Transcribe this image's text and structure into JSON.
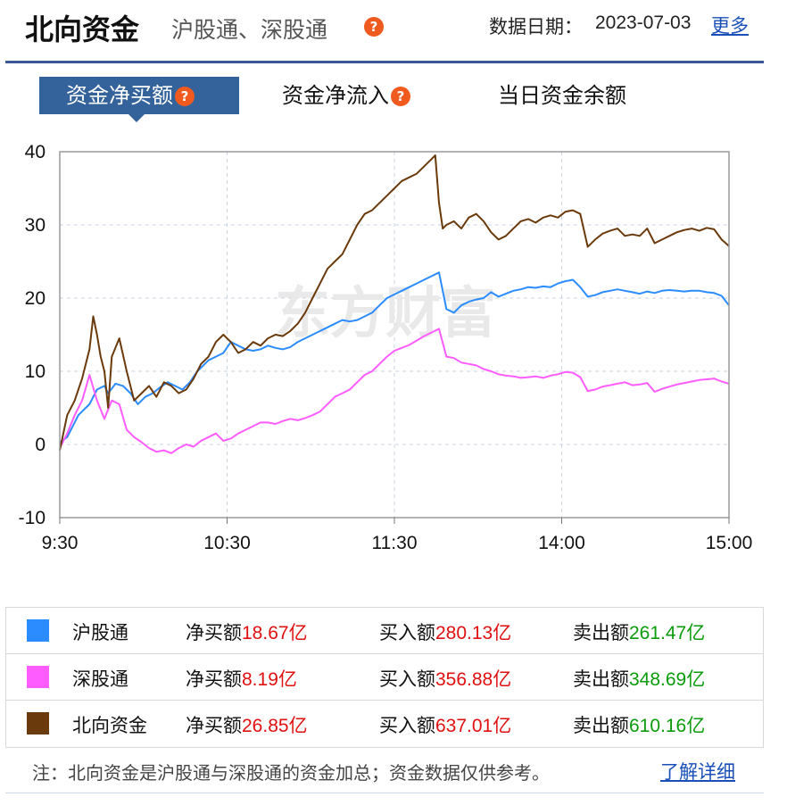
{
  "header": {
    "title": "北向资金",
    "subtitle": "沪股通、深股通",
    "date_label": "数据日期：",
    "date_value": "2023-07-03",
    "more_link": "更多"
  },
  "tabs": [
    {
      "label": "资金净买额",
      "active": true,
      "has_help": true
    },
    {
      "label": "资金净流入",
      "active": false,
      "has_help": true
    },
    {
      "label": "当日资金余额",
      "active": false,
      "has_help": false
    }
  ],
  "help_glyph": "?",
  "chart_data": {
    "type": "line",
    "x_ticks": [
      "9:30",
      "10:30",
      "11:30",
      "14:00",
      "15:00"
    ],
    "ylim": [
      -10,
      40
    ],
    "y_ticks": [
      -10,
      0,
      10,
      20,
      30,
      40
    ],
    "grid": true,
    "legend_position": "below",
    "series": [
      {
        "name": "沪股通",
        "color": "#2b8cff",
        "values": [
          [
            0,
            0.3
          ],
          [
            2,
            1
          ],
          [
            5,
            4
          ],
          [
            8,
            5.5
          ],
          [
            10,
            7.5
          ],
          [
            12,
            8
          ],
          [
            13,
            7
          ],
          [
            15,
            8.3
          ],
          [
            17,
            8
          ],
          [
            19,
            7
          ],
          [
            21,
            5.5
          ],
          [
            23,
            6.5
          ],
          [
            25,
            7
          ],
          [
            27,
            7.8
          ],
          [
            29,
            8.5
          ],
          [
            31,
            8
          ],
          [
            33,
            7.5
          ],
          [
            35,
            8.5
          ],
          [
            37,
            10
          ],
          [
            40,
            11.5
          ],
          [
            42,
            12
          ],
          [
            44,
            12.5
          ],
          [
            46,
            14
          ],
          [
            48,
            13.5
          ],
          [
            50,
            13
          ],
          [
            52,
            12.8
          ],
          [
            54,
            13
          ],
          [
            56,
            13.5
          ],
          [
            58,
            13.2
          ],
          [
            60,
            13
          ],
          [
            62,
            13.3
          ],
          [
            64,
            14
          ],
          [
            66,
            14.5
          ],
          [
            68,
            15
          ],
          [
            70,
            15.5
          ],
          [
            72,
            16
          ],
          [
            74,
            16.5
          ],
          [
            76,
            17
          ],
          [
            78,
            16.8
          ],
          [
            80,
            17
          ],
          [
            82,
            17.5
          ],
          [
            84,
            18
          ],
          [
            86,
            19
          ],
          [
            88,
            20
          ],
          [
            90,
            20.5
          ],
          [
            92,
            21
          ],
          [
            94,
            21.5
          ],
          [
            96,
            22
          ],
          [
            98,
            22.5
          ],
          [
            100,
            23
          ],
          [
            102,
            23.5
          ],
          [
            104,
            18.5
          ],
          [
            106,
            18
          ],
          [
            108,
            19
          ],
          [
            110,
            19.5
          ],
          [
            112,
            19.8
          ],
          [
            114,
            20
          ],
          [
            116,
            20.8
          ],
          [
            118,
            20.2
          ],
          [
            120,
            20.6
          ],
          [
            122,
            21
          ],
          [
            124,
            21.2
          ],
          [
            126,
            21.5
          ],
          [
            128,
            21.4
          ],
          [
            130,
            21.6
          ],
          [
            132,
            21.5
          ],
          [
            134,
            22
          ],
          [
            136,
            22.3
          ],
          [
            138,
            22.5
          ],
          [
            140,
            21.5
          ],
          [
            142,
            20.2
          ],
          [
            144,
            20.4
          ],
          [
            146,
            20.8
          ],
          [
            148,
            21
          ],
          [
            150,
            21.2
          ],
          [
            152,
            21
          ],
          [
            154,
            20.8
          ],
          [
            156,
            20.6
          ],
          [
            158,
            20.9
          ],
          [
            160,
            20.7
          ],
          [
            162,
            21
          ],
          [
            164,
            21.1
          ],
          [
            166,
            21
          ],
          [
            168,
            20.9
          ],
          [
            170,
            21
          ],
          [
            172,
            21
          ],
          [
            174,
            20.8
          ],
          [
            176,
            20.7
          ],
          [
            178,
            20.3
          ],
          [
            180,
            19
          ]
        ]
      },
      {
        "name": "深股通",
        "color": "#ff5cff",
        "values": [
          [
            0,
            -0.5
          ],
          [
            2,
            1.5
          ],
          [
            4,
            4
          ],
          [
            6,
            6
          ],
          [
            8,
            9.5
          ],
          [
            10,
            6
          ],
          [
            12,
            3.5
          ],
          [
            14,
            6
          ],
          [
            16,
            5.5
          ],
          [
            18,
            2
          ],
          [
            20,
            1
          ],
          [
            22,
            0.3
          ],
          [
            24,
            -0.5
          ],
          [
            26,
            -1
          ],
          [
            28,
            -0.8
          ],
          [
            30,
            -1.2
          ],
          [
            32,
            -0.5
          ],
          [
            34,
            0
          ],
          [
            36,
            -0.3
          ],
          [
            38,
            0.5
          ],
          [
            40,
            1
          ],
          [
            42,
            1.5
          ],
          [
            44,
            0.5
          ],
          [
            46,
            0.8
          ],
          [
            48,
            1.5
          ],
          [
            50,
            2
          ],
          [
            52,
            2.5
          ],
          [
            54,
            3
          ],
          [
            56,
            3
          ],
          [
            58,
            2.8
          ],
          [
            60,
            3.2
          ],
          [
            62,
            3.5
          ],
          [
            64,
            3.3
          ],
          [
            66,
            3.6
          ],
          [
            68,
            4
          ],
          [
            70,
            4.5
          ],
          [
            72,
            5.5
          ],
          [
            74,
            6.5
          ],
          [
            76,
            7
          ],
          [
            78,
            7.5
          ],
          [
            80,
            8.5
          ],
          [
            82,
            9.5
          ],
          [
            84,
            10
          ],
          [
            86,
            11
          ],
          [
            88,
            12
          ],
          [
            90,
            12.8
          ],
          [
            92,
            13.2
          ],
          [
            94,
            13.6
          ],
          [
            96,
            14.2
          ],
          [
            98,
            14.8
          ],
          [
            100,
            15.3
          ],
          [
            102,
            15.8
          ],
          [
            104,
            12
          ],
          [
            106,
            11.8
          ],
          [
            108,
            11.2
          ],
          [
            110,
            11
          ],
          [
            112,
            10.8
          ],
          [
            114,
            10.3
          ],
          [
            116,
            10
          ],
          [
            118,
            9.6
          ],
          [
            120,
            9.4
          ],
          [
            122,
            9.3
          ],
          [
            124,
            9.1
          ],
          [
            126,
            9.2
          ],
          [
            128,
            9.3
          ],
          [
            130,
            9.1
          ],
          [
            132,
            9.4
          ],
          [
            134,
            9.6
          ],
          [
            136,
            9.9
          ],
          [
            138,
            9.8
          ],
          [
            140,
            9.2
          ],
          [
            142,
            7.3
          ],
          [
            144,
            7.5
          ],
          [
            146,
            7.9
          ],
          [
            148,
            8.1
          ],
          [
            150,
            8.3
          ],
          [
            152,
            8.5
          ],
          [
            154,
            8.1
          ],
          [
            156,
            8.2
          ],
          [
            158,
            8.4
          ],
          [
            160,
            7.2
          ],
          [
            162,
            7.6
          ],
          [
            164,
            7.9
          ],
          [
            166,
            8.2
          ],
          [
            168,
            8.4
          ],
          [
            170,
            8.6
          ],
          [
            172,
            8.8
          ],
          [
            174,
            8.9
          ],
          [
            176,
            9
          ],
          [
            178,
            8.6
          ],
          [
            180,
            8.3
          ]
        ]
      },
      {
        "name": "北向资金",
        "color": "#6b3a0c",
        "values": [
          [
            0,
            -0.8
          ],
          [
            2,
            4
          ],
          [
            4,
            6
          ],
          [
            6,
            9
          ],
          [
            8,
            13
          ],
          [
            9,
            17.5
          ],
          [
            10,
            15
          ],
          [
            11,
            12
          ],
          [
            12,
            10
          ],
          [
            13,
            5
          ],
          [
            14,
            12
          ],
          [
            16,
            14.5
          ],
          [
            18,
            10
          ],
          [
            20,
            6
          ],
          [
            22,
            7
          ],
          [
            24,
            8
          ],
          [
            26,
            6.5
          ],
          [
            28,
            8.5
          ],
          [
            30,
            8
          ],
          [
            32,
            7
          ],
          [
            34,
            7.5
          ],
          [
            36,
            9
          ],
          [
            38,
            11
          ],
          [
            40,
            12
          ],
          [
            42,
            14
          ],
          [
            44,
            15
          ],
          [
            46,
            14
          ],
          [
            48,
            12.5
          ],
          [
            50,
            13
          ],
          [
            52,
            14
          ],
          [
            54,
            13.5
          ],
          [
            56,
            14.5
          ],
          [
            58,
            15
          ],
          [
            60,
            14.8
          ],
          [
            62,
            15.5
          ],
          [
            64,
            16.5
          ],
          [
            66,
            18
          ],
          [
            68,
            20
          ],
          [
            70,
            22
          ],
          [
            72,
            24
          ],
          [
            74,
            25
          ],
          [
            76,
            26
          ],
          [
            78,
            28
          ],
          [
            80,
            30
          ],
          [
            82,
            31.5
          ],
          [
            84,
            32
          ],
          [
            86,
            33
          ],
          [
            88,
            34
          ],
          [
            90,
            35
          ],
          [
            92,
            36
          ],
          [
            94,
            36.5
          ],
          [
            96,
            37
          ],
          [
            98,
            38
          ],
          [
            100,
            39
          ],
          [
            101,
            39.5
          ],
          [
            102,
            33
          ],
          [
            103,
            29.5
          ],
          [
            104,
            30
          ],
          [
            106,
            30.5
          ],
          [
            108,
            29.5
          ],
          [
            110,
            31
          ],
          [
            112,
            31.5
          ],
          [
            114,
            30.5
          ],
          [
            116,
            29
          ],
          [
            118,
            28
          ],
          [
            120,
            28.5
          ],
          [
            122,
            29.5
          ],
          [
            124,
            30.5
          ],
          [
            126,
            30.8
          ],
          [
            128,
            30.3
          ],
          [
            130,
            31
          ],
          [
            132,
            31.3
          ],
          [
            134,
            31
          ],
          [
            136,
            31.8
          ],
          [
            138,
            32
          ],
          [
            140,
            31.5
          ],
          [
            142,
            27
          ],
          [
            144,
            28
          ],
          [
            146,
            28.8
          ],
          [
            148,
            29.2
          ],
          [
            150,
            29.5
          ],
          [
            152,
            28.5
          ],
          [
            154,
            28.7
          ],
          [
            156,
            28.5
          ],
          [
            158,
            29.5
          ],
          [
            160,
            27.5
          ],
          [
            162,
            28
          ],
          [
            164,
            28.5
          ],
          [
            166,
            29
          ],
          [
            168,
            29.3
          ],
          [
            170,
            29.5
          ],
          [
            172,
            29.2
          ],
          [
            174,
            29.6
          ],
          [
            176,
            29.4
          ],
          [
            178,
            28
          ],
          [
            180,
            27.1
          ]
        ]
      }
    ]
  },
  "summary_rows": [
    {
      "name": "沪股通",
      "color": "#2b8cff",
      "net_label": "净买额",
      "net": "18.67亿",
      "buy_label": "买入额",
      "buy": "280.13亿",
      "sell_label": "卖出额",
      "sell": "261.47亿"
    },
    {
      "name": "深股通",
      "color": "#ff5cff",
      "net_label": "净买额",
      "net": "8.19亿",
      "buy_label": "买入额",
      "buy": "356.88亿",
      "sell_label": "卖出额",
      "sell": "348.69亿"
    },
    {
      "name": "北向资金",
      "color": "#6b3a0c",
      "net_label": "净买额",
      "net": "26.85亿",
      "buy_label": "买入额",
      "buy": "637.01亿",
      "sell_label": "卖出额",
      "sell": "610.16亿"
    }
  ],
  "footer": {
    "note": "注：北向资金是沪股通与深股通的资金加总；资金数据仅供参考。",
    "detail_link": "了解详细"
  },
  "watermark": "东方财富"
}
